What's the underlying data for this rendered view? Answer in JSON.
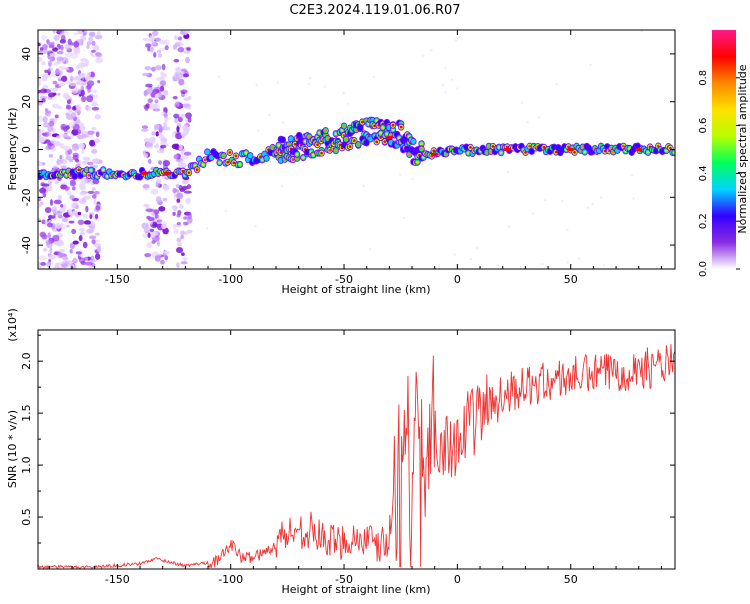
{
  "title": "C2E3.2024.119.01.06.R07",
  "chart_data": [
    {
      "type": "heatmap",
      "xlabel": "Height of straight line (km)",
      "ylabel": "Frequency (Hz)",
      "xlim": [
        -185,
        96
      ],
      "ylim": [
        -50,
        50
      ],
      "xticks": [
        -150,
        -100,
        -50,
        0,
        50
      ],
      "yticks": [
        -40,
        -20,
        0,
        20,
        40
      ],
      "colorbar": {
        "label": "Normalized spectral amplitude",
        "range": [
          0,
          1
        ],
        "ticks": [
          "0.0",
          "0.2",
          "0.4",
          "0.6",
          "0.8"
        ],
        "colors": [
          "#ffffff",
          "#8a2be2",
          "#3300ff",
          "#00d4ff",
          "#00ff5a",
          "#b8ff00",
          "#ffe000",
          "#ff8800",
          "#ff0000",
          "#ff1a8c"
        ]
      },
      "ridge": {
        "x": [
          -185,
          -160,
          -130,
          -117,
          -110,
          -95,
          -85,
          -75,
          -60,
          -45,
          -35,
          -25,
          -20,
          -15,
          -5,
          10,
          30,
          60,
          96
        ],
        "y": [
          -10,
          -10,
          -10,
          -9,
          -3,
          -4,
          -2,
          0,
          3,
          6,
          8,
          6,
          0,
          -2,
          -1,
          0,
          0,
          0,
          0
        ]
      },
      "noise_bands": [
        [
          -185,
          -158
        ],
        [
          -138,
          -128
        ],
        [
          -125,
          -118
        ]
      ]
    },
    {
      "type": "line",
      "xlabel": "Height of straight line (km)",
      "ylabel": "SNR (10 * v/v)",
      "y_multiplier": "(x10⁴)",
      "xlim": [
        -185,
        96
      ],
      "ylim": [
        0,
        2.3
      ],
      "xticks": [
        -150,
        -100,
        -50,
        0,
        50
      ],
      "yticks": [
        "0.5",
        "1.0",
        "1.5",
        "2.0"
      ],
      "line_color": "#ee3333",
      "series": [
        {
          "x": [
            -185,
            -160,
            -140,
            -133,
            -120,
            -105,
            -100,
            -95,
            -85,
            -80,
            -75,
            -65,
            -60,
            -55,
            -45,
            -40,
            -35,
            -30,
            -28,
            -25,
            -22,
            -20,
            -15,
            -10,
            -5,
            0,
            10,
            20,
            30,
            50,
            70,
            90,
            96
          ],
          "y": [
            0.02,
            0.02,
            0.05,
            0.1,
            0.03,
            0.08,
            0.25,
            0.1,
            0.15,
            0.25,
            0.35,
            0.38,
            0.3,
            0.25,
            0.3,
            0.28,
            0.2,
            0.3,
            0.75,
            1.1,
            1.1,
            1.05,
            1.2,
            1.3,
            1.2,
            1.25,
            1.5,
            1.7,
            1.75,
            1.85,
            1.9,
            1.95,
            2.0
          ]
        }
      ]
    }
  ]
}
